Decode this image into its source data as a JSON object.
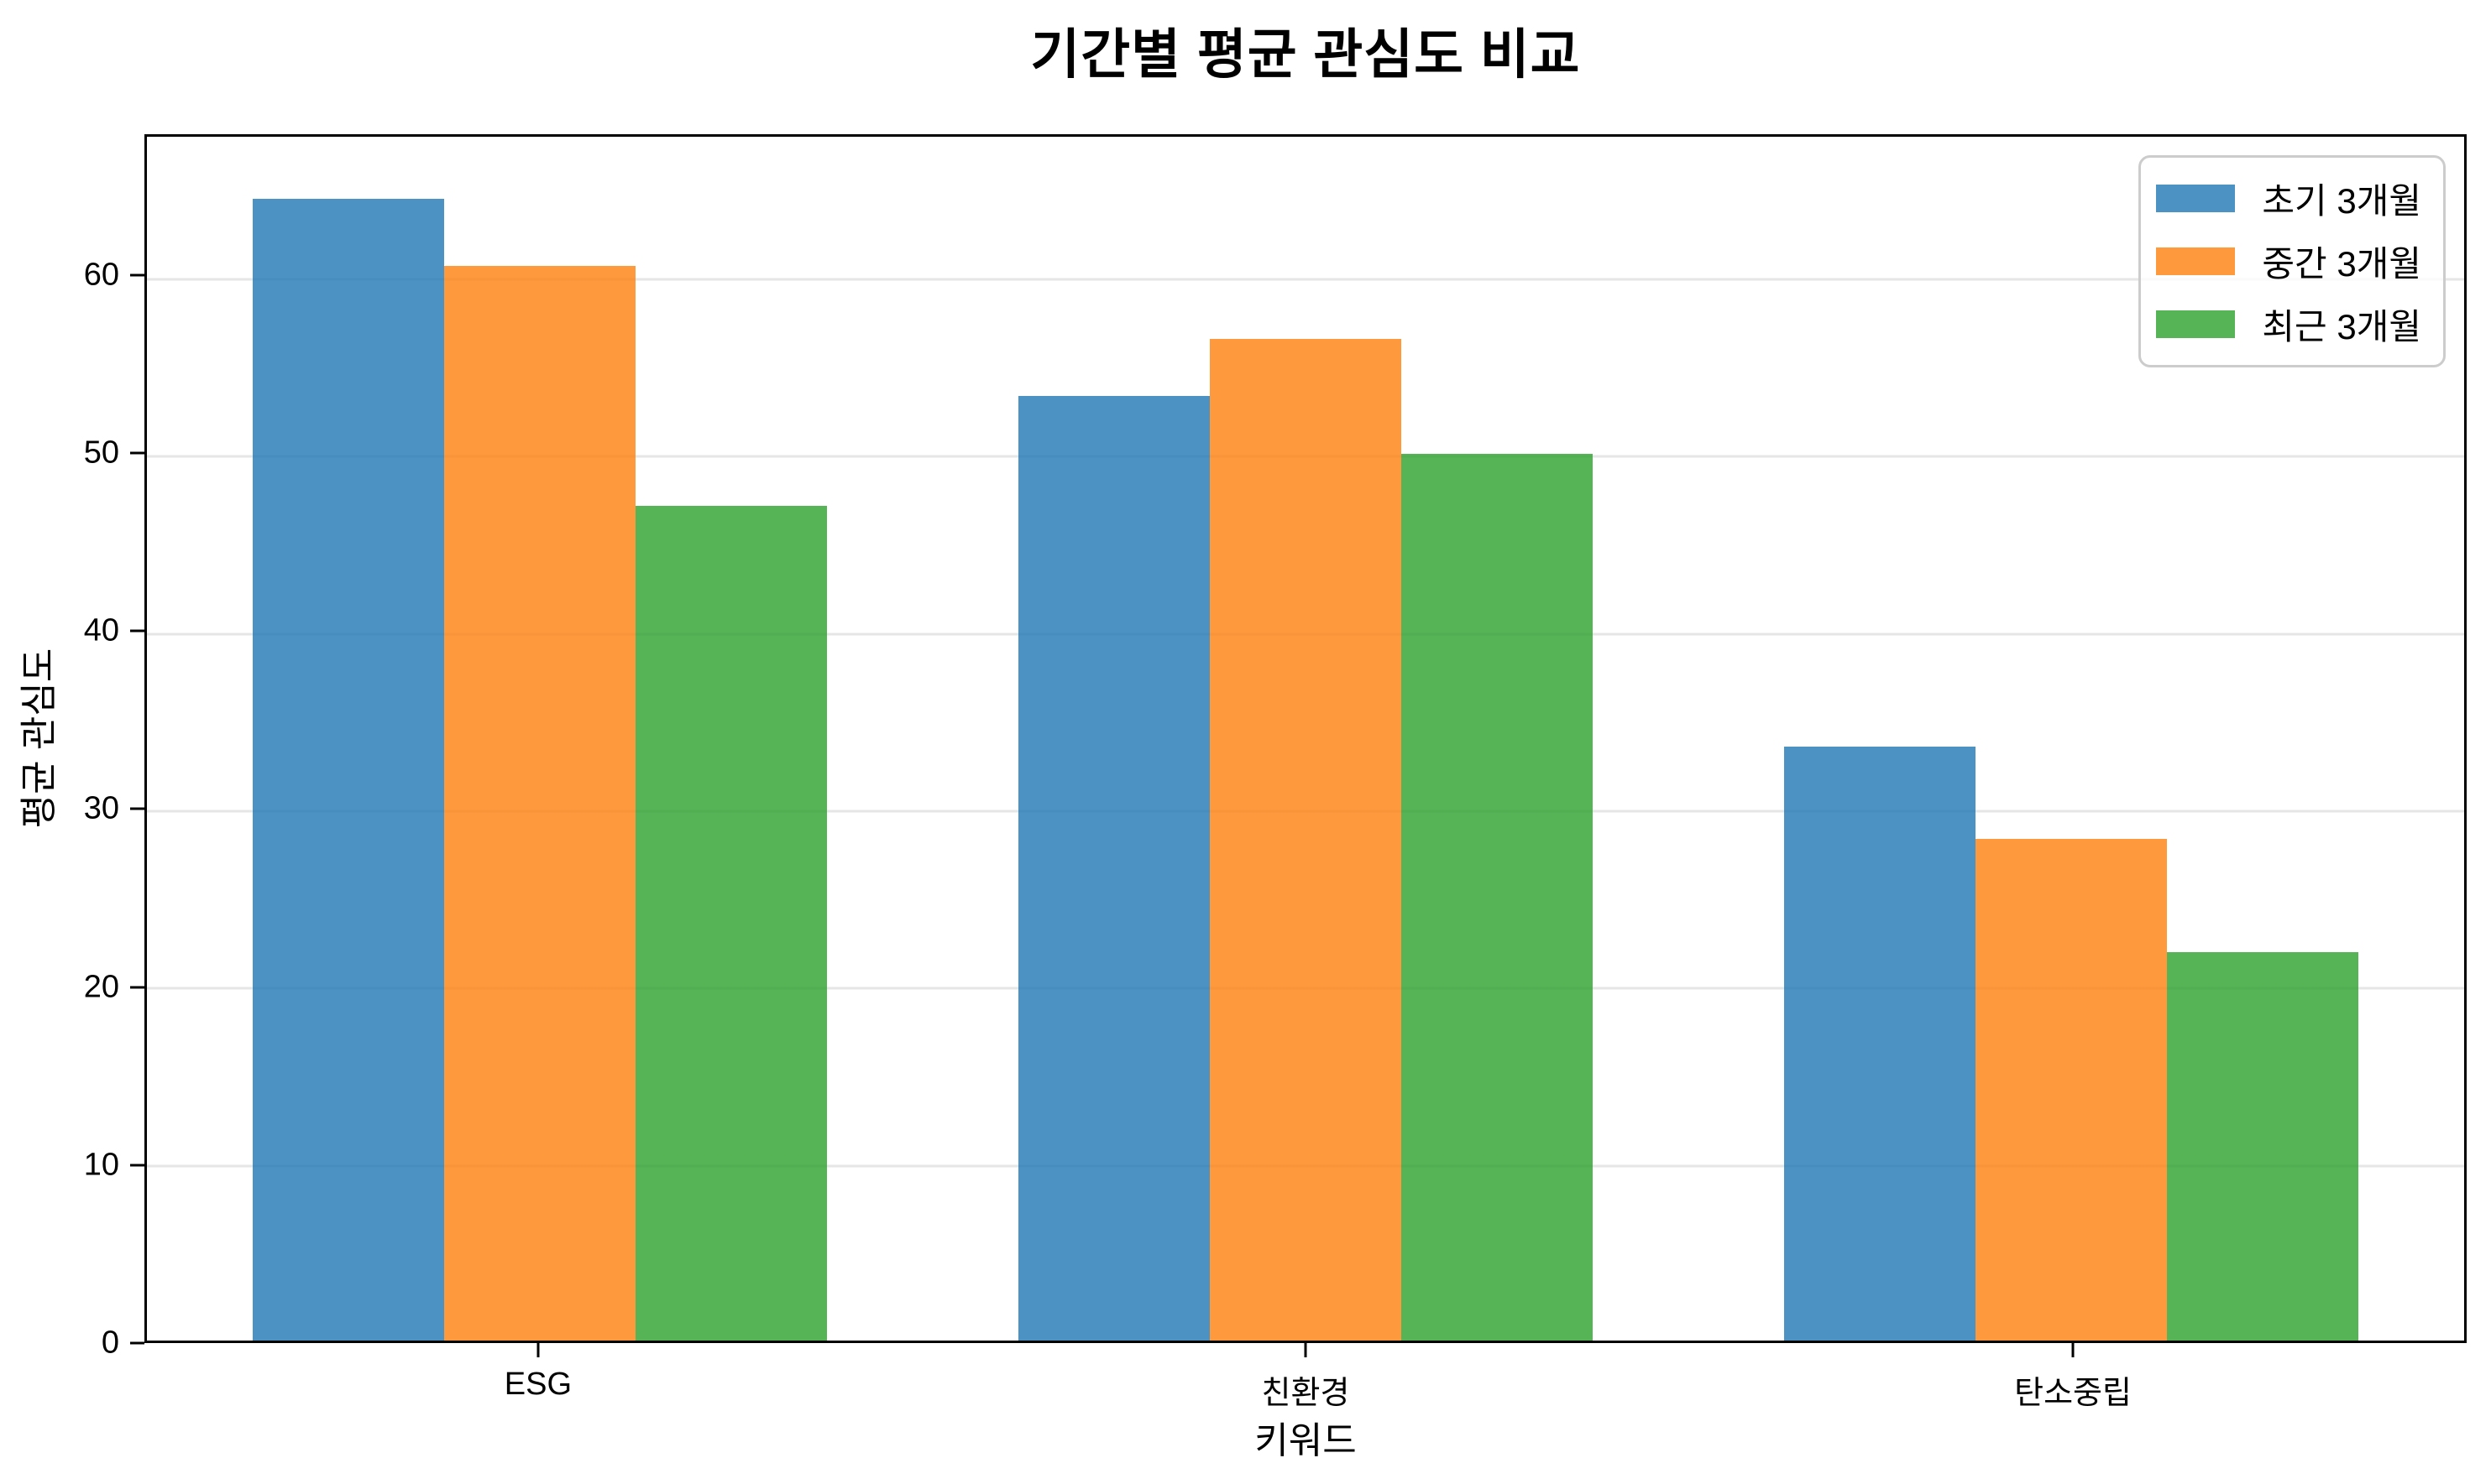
{
  "chart_data": {
    "type": "bar",
    "title": "기간별 평균 관심도 비교",
    "xlabel": "키워드",
    "ylabel": "평균 관심도",
    "categories": [
      "ESG",
      "친환경",
      "탄소중립"
    ],
    "series": [
      {
        "name": "초기 3개월",
        "color": "#1f77b4",
        "values": [
          64.4,
          53.3,
          33.5
        ]
      },
      {
        "name": "중간 3개월",
        "color": "#ff7f0e",
        "values": [
          60.6,
          56.5,
          28.3
        ]
      },
      {
        "name": "최근 3개월",
        "color": "#2ca02c",
        "values": [
          47.1,
          50.0,
          21.9
        ]
      }
    ],
    "bar_alpha": 0.8,
    "bar_width_units": 0.25,
    "yticks": [
      0,
      10,
      20,
      30,
      40,
      50,
      60
    ],
    "ylim": [
      0,
      67.9
    ],
    "xlim": [
      -0.513,
      2.513
    ],
    "grid": "horizontal",
    "grid_color": "#e6e6e6",
    "spine_color": "#000000",
    "legend_position": "upper right",
    "legend_border_color": "#cccccc"
  }
}
